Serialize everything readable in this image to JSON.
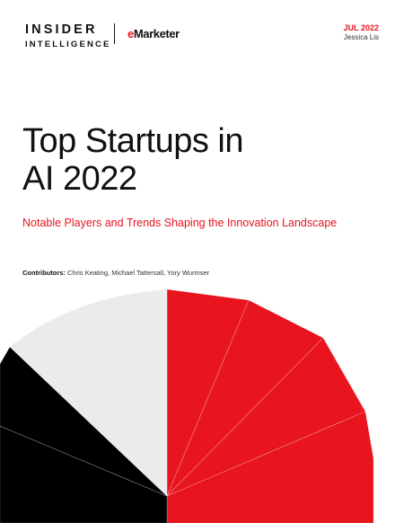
{
  "logos": {
    "insider_line1": "INSIDER",
    "insider_line2": "INTELLIGENCE",
    "emarketer_e": "e",
    "emarketer_rest": "Marketer"
  },
  "report": {
    "date": "JUL 2022",
    "author": "Jessica Lis",
    "title_line1": "Top Startups in",
    "title_line2": "AI 2022",
    "subtitle": "Notable Players and Trends Shaping the Innovation Landscape",
    "contributors_label": "Contributors:",
    "contributors_names": " Chris Keating, Michael Tattersall, Yory Wurmser"
  },
  "colors": {
    "accent_red": "#e8141e",
    "black": "#000000",
    "light_gray": "#ebebeb"
  }
}
